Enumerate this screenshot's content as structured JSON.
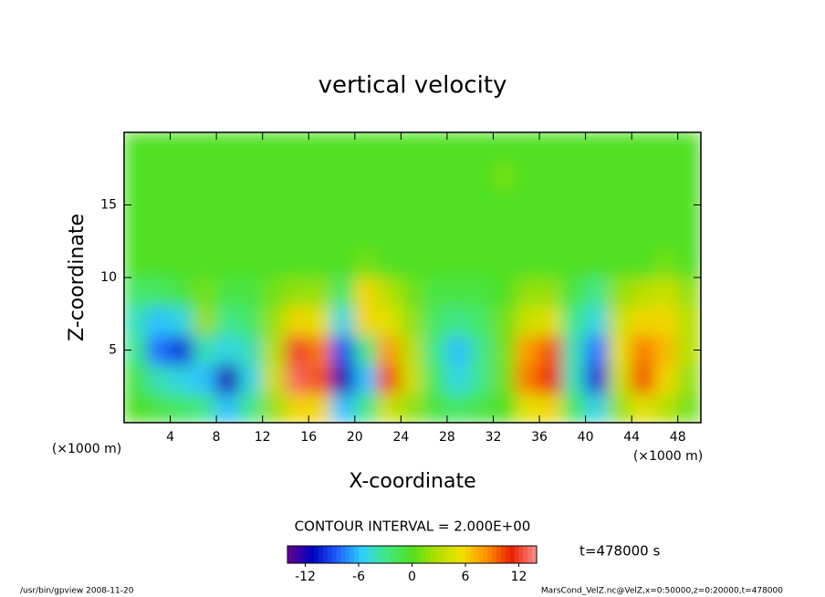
{
  "chart_data": {
    "type": "contour",
    "title": "vertical velocity",
    "xlabel": "X-coordinate",
    "ylabel": "Z-coordinate",
    "x_unit": "(×1000 m)",
    "xlim": [
      0,
      50
    ],
    "ylim": [
      0,
      20
    ],
    "xticks": [
      4,
      8,
      12,
      16,
      20,
      24,
      28,
      32,
      36,
      40,
      44,
      48
    ],
    "yticks": [
      5,
      10,
      15
    ],
    "x": [
      1,
      3,
      5,
      7,
      9,
      11,
      13,
      15,
      17,
      19,
      21,
      23,
      25,
      27,
      29,
      31,
      33,
      35,
      37,
      39,
      41,
      43,
      45,
      47,
      49
    ],
    "y": [
      1,
      3,
      5,
      7,
      9,
      11,
      13,
      15,
      17,
      19
    ],
    "z": [
      [
        0,
        -1,
        -2,
        -3,
        -6,
        -3,
        2,
        6,
        6,
        -6,
        -3,
        4,
        2,
        -1,
        -2,
        -1,
        0,
        5,
        6,
        -2,
        -5,
        2,
        5,
        3,
        1
      ],
      [
        -1,
        -4,
        -5,
        -6,
        -12,
        -5,
        4,
        13,
        10,
        -12,
        -6,
        10,
        4,
        -2,
        -5,
        -3,
        1,
        9,
        11,
        -4,
        -10,
        4,
        10,
        6,
        2
      ],
      [
        -3,
        -8,
        -10,
        -4,
        -5,
        -4,
        3,
        12,
        9,
        -9,
        -3,
        8,
        3,
        -3,
        -6,
        -3,
        1,
        8,
        10,
        -4,
        -8,
        5,
        9,
        7,
        3
      ],
      [
        -4,
        -6,
        -5,
        2,
        -3,
        -2,
        2,
        6,
        5,
        -5,
        6,
        5,
        2,
        -2,
        -3,
        -2,
        1,
        4,
        5,
        -3,
        -5,
        4,
        6,
        6,
        3
      ],
      [
        -2,
        -2,
        -1,
        1,
        -1,
        -1,
        1,
        2,
        2,
        -2,
        6,
        3,
        1,
        -1,
        -1,
        -1,
        0,
        2,
        2,
        -1,
        -3,
        2,
        3,
        4,
        2
      ],
      [
        0,
        0,
        0,
        0,
        0,
        0,
        0,
        0,
        0,
        0,
        1,
        0,
        0,
        0,
        0,
        0,
        0,
        0,
        0,
        0,
        0,
        0,
        0,
        1,
        0
      ],
      [
        0,
        0,
        0,
        0,
        0,
        0,
        0,
        0,
        0,
        0,
        0,
        0,
        0,
        0,
        0,
        0,
        0,
        0,
        0,
        0,
        0,
        0,
        0,
        0,
        0
      ],
      [
        0,
        0,
        0,
        0,
        0,
        0,
        0,
        0,
        0,
        0,
        0,
        0,
        0,
        0,
        0,
        0,
        0,
        0,
        0,
        0,
        0,
        0,
        0,
        0,
        0
      ],
      [
        0,
        0,
        0,
        0,
        0,
        0,
        0,
        0,
        0,
        0,
        0,
        0,
        0,
        0,
        0,
        0,
        1,
        0,
        0,
        0,
        0,
        0,
        0,
        0,
        0
      ],
      [
        0,
        0,
        0,
        0,
        0,
        0,
        0,
        0,
        0,
        0,
        0,
        0,
        0,
        0,
        0,
        0,
        0,
        0,
        0,
        0,
        0,
        0,
        0,
        0,
        0
      ]
    ],
    "colors": [
      "#6a0090",
      "#0000c0",
      "#2060ff",
      "#30d0ff",
      "#40e880",
      "#50e020",
      "#b0e000",
      "#f0e000",
      "#ff9000",
      "#e82000",
      "#ff9090"
    ],
    "clim": [
      -14,
      14
    ],
    "cticks": [
      -12,
      -6,
      0,
      6,
      12
    ],
    "contour_interval": "CONTOUR INTERVAL = 2.000E+00",
    "time": "t=478000 s",
    "footer_left": "/usr/bin/gpview  2008-11-20",
    "footer_right": "MarsCond_VelZ.nc@VelZ,x=0:50000,z=0:20000,t=478000"
  }
}
